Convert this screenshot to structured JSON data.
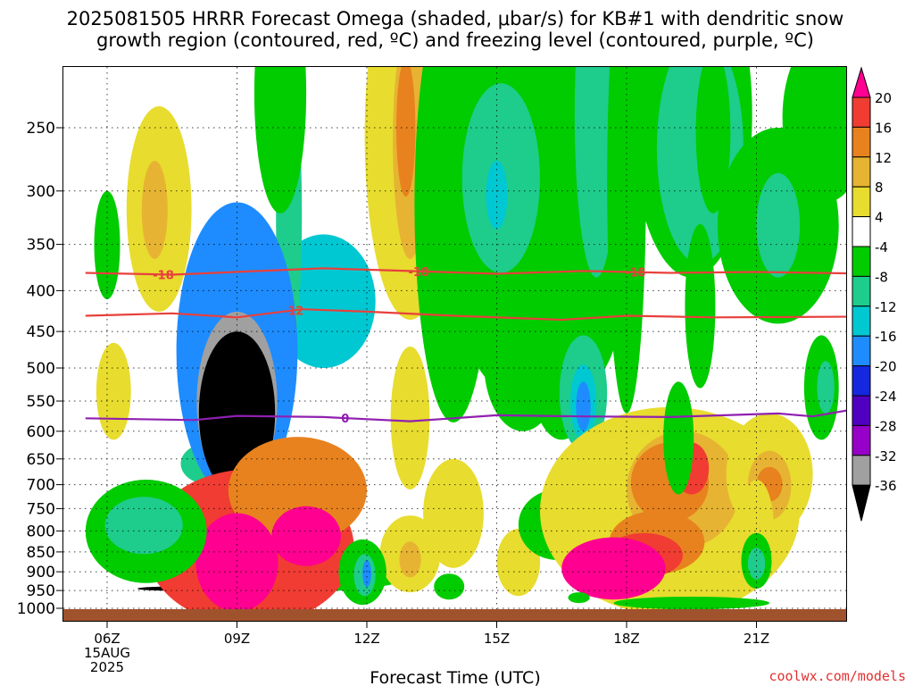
{
  "chart_data": {
    "type": "heatmap",
    "title_lines": [
      "2025081505 HRRR Forecast Omega (shaded, μbar/s) for KB#1 with dendritic snow",
      "growth region (contoured, red, ºC) and freezing level (contoured, purple, ºC)"
    ],
    "xlabel": "Forecast Time (UTC)",
    "ylabel": "",
    "credit": "coolwx.com/models",
    "x_ticks": [
      {
        "hour": 6,
        "lines": [
          "06Z",
          "15AUG",
          "2025"
        ]
      },
      {
        "hour": 9,
        "lines": [
          "09Z"
        ]
      },
      {
        "hour": 12,
        "lines": [
          "12Z"
        ]
      },
      {
        "hour": 15,
        "lines": [
          "15Z"
        ]
      },
      {
        "hour": 18,
        "lines": [
          "18Z"
        ]
      },
      {
        "hour": 21,
        "lines": [
          "21Z"
        ]
      }
    ],
    "xlim": [
      5.5,
      23.75
    ],
    "y_ticks": [
      250,
      300,
      350,
      400,
      450,
      500,
      550,
      600,
      650,
      700,
      750,
      800,
      850,
      900,
      950,
      1000
    ],
    "ylim": [
      200,
      1015
    ],
    "y_scale": "log-pressure",
    "grid": true,
    "colorbar": {
      "labels": [
        20,
        16,
        12,
        8,
        4,
        -4,
        -8,
        -12,
        -16,
        -20,
        -24,
        -28,
        -32,
        -36
      ],
      "colors": [
        "#ff0090",
        "#f03c32",
        "#e8821e",
        "#e6b432",
        "#e8dc2e",
        "#ffffff",
        "#00cc00",
        "#1ecc8c",
        "#00c8d2",
        "#1e8cff",
        "#1428e0",
        "#5000c0",
        "#9600c8",
        "#a0a0a0",
        "#000000"
      ]
    },
    "contours": [
      {
        "name": "-18",
        "color": "#e8403c",
        "label_hours": [
          7.3,
          13.2,
          18.2
        ],
        "points": [
          [
            5.5,
            380
          ],
          [
            7.5,
            382
          ],
          [
            9.5,
            378
          ],
          [
            11,
            375
          ],
          [
            13,
            378
          ],
          [
            15,
            381
          ],
          [
            17,
            378
          ],
          [
            19,
            380
          ],
          [
            21,
            379
          ],
          [
            23.75,
            381
          ]
        ]
      },
      {
        "name": "-12",
        "color": "#e8403c",
        "label_hours": [
          10.3
        ],
        "points": [
          [
            5.5,
            430
          ],
          [
            7.5,
            427
          ],
          [
            9,
            432
          ],
          [
            10.5,
            422
          ],
          [
            12,
            425
          ],
          [
            14,
            430
          ],
          [
            16.5,
            435
          ],
          [
            18,
            430
          ],
          [
            20,
            432
          ],
          [
            23.75,
            431
          ]
        ]
      },
      {
        "name": "0",
        "color": "#9020b0",
        "label_hours": [
          11.5
        ],
        "points": [
          [
            5.5,
            578
          ],
          [
            8,
            581
          ],
          [
            9,
            574
          ],
          [
            11,
            576
          ],
          [
            13,
            583
          ],
          [
            15,
            573
          ],
          [
            17,
            575
          ],
          [
            19,
            576
          ],
          [
            21.5,
            570
          ],
          [
            22.3,
            575
          ],
          [
            23.75,
            557
          ]
        ]
      }
    ],
    "cells": [
      {
        "hour": 8.3,
        "p": 660,
        "hw": 0.6,
        "hh": 38,
        "v": -8
      },
      {
        "hour": 10.6,
        "p": 905,
        "hw": 2.5,
        "hh": 48,
        "v": -4.4
      },
      {
        "hour": 11.0,
        "p": 420,
        "hw": 1.2,
        "hh": 80,
        "v": -12.5
      },
      {
        "hour": 7.6,
        "p": 945,
        "hw": 0.9,
        "hh": 6,
        "v": -36
      },
      {
        "hour": 10.2,
        "p": 350,
        "hw": 0.3,
        "hh": 140,
        "v": -8
      },
      {
        "hour": 9.0,
        "p": 520,
        "hw": 1.4,
        "hh": 210,
        "v": -17
      },
      {
        "hour": 9.0,
        "p": 570,
        "hw": 0.93,
        "hh": 145,
        "v": -33
      },
      {
        "hour": 9.0,
        "p": 585,
        "hw": 0.88,
        "hh": 135,
        "v": -36.5
      },
      {
        "hour": 9.3,
        "p": 860,
        "hw": 2.4,
        "hh": 190,
        "v": 17
      },
      {
        "hour": 10.4,
        "p": 720,
        "hw": 1.6,
        "hh": 110,
        "v": 14
      },
      {
        "hour": 9.0,
        "p": 885,
        "hw": 0.95,
        "hh": 125,
        "v": 20.5
      },
      {
        "hour": 10.6,
        "p": 815,
        "hw": 0.8,
        "hh": 70,
        "v": 20.5
      },
      {
        "hour": 7.2,
        "p": 330,
        "hw": 0.75,
        "hh": 95,
        "v": 5
      },
      {
        "hour": 7.1,
        "p": 320,
        "hw": 0.3,
        "hh": 45,
        "v": 9
      },
      {
        "hour": 6.15,
        "p": 255,
        "hw": 0.14,
        "hh": 25,
        "v": 3.8
      },
      {
        "hour": 6.15,
        "p": 540,
        "hw": 0.4,
        "hh": 75,
        "v": 4.5
      },
      {
        "hour": 6.0,
        "p": 355,
        "hw": 0.3,
        "hh": 55,
        "v": -4.5
      },
      {
        "hour": 6.9,
        "p": 810,
        "hw": 1.4,
        "hh": 120,
        "v": -4.5
      },
      {
        "hour": 6.85,
        "p": 790,
        "hw": 0.9,
        "hh": 65,
        "v": -9
      },
      {
        "hour": 10.0,
        "p": 240,
        "hw": 0.6,
        "hh": 80,
        "v": -5
      },
      {
        "hour": 13.0,
        "p": 235,
        "hw": 1.05,
        "hh": 200,
        "v": 5
      },
      {
        "hour": 13.0,
        "p": 275,
        "hw": 0.4,
        "hh": 90,
        "v": 9
      },
      {
        "hour": 12.9,
        "p": 255,
        "hw": 0.22,
        "hh": 50,
        "v": 13
      },
      {
        "hour": 14.0,
        "p": 375,
        "hw": 0.9,
        "hh": 210,
        "v": -4.4
      },
      {
        "hour": 15.3,
        "p": 235,
        "hw": 1.6,
        "hh": 300,
        "v": -4.5
      },
      {
        "hour": 15.1,
        "p": 300,
        "hw": 0.9,
        "hh": 80,
        "v": -9
      },
      {
        "hour": 15.0,
        "p": 305,
        "hw": 0.25,
        "hh": 30,
        "v": -13
      },
      {
        "hour": 17.2,
        "p": 235,
        "hw": 1.0,
        "hh": 280,
        "v": -4.5
      },
      {
        "hour": 17.3,
        "p": 265,
        "hw": 0.5,
        "hh": 120,
        "v": -8.5
      },
      {
        "hour": 15.6,
        "p": 500,
        "hw": 0.9,
        "hh": 100,
        "v": -4.5
      },
      {
        "hour": 13.0,
        "p": 860,
        "hw": 0.7,
        "hh": 95,
        "v": 4.5
      },
      {
        "hour": 13.0,
        "p": 870,
        "hw": 0.25,
        "hh": 45,
        "v": 9
      },
      {
        "hour": 14.0,
        "p": 770,
        "hw": 0.7,
        "hh": 120,
        "v": 4.5
      },
      {
        "hour": 15.5,
        "p": 880,
        "hw": 0.5,
        "hh": 85,
        "v": 4.5
      },
      {
        "hour": 11.9,
        "p": 905,
        "hw": 0.55,
        "hh": 85,
        "v": -4.5
      },
      {
        "hour": 11.95,
        "p": 910,
        "hw": 0.25,
        "hh": 55,
        "v": -10
      },
      {
        "hour": 12.0,
        "p": 905,
        "hw": 0.1,
        "hh": 35,
        "v": -17
      },
      {
        "hour": 13.0,
        "p": 590,
        "hw": 0.45,
        "hh": 120,
        "v": 5
      },
      {
        "hour": 13.9,
        "p": 940,
        "hw": 0.35,
        "hh": 35,
        "v": -5
      },
      {
        "hour": 16.5,
        "p": 495,
        "hw": 0.8,
        "hh": 120,
        "v": -5
      },
      {
        "hour": 17.0,
        "p": 545,
        "hw": 0.55,
        "hh": 90,
        "v": -8.5
      },
      {
        "hour": 17.0,
        "p": 555,
        "hw": 0.3,
        "hh": 60,
        "v": -13
      },
      {
        "hour": 17.0,
        "p": 560,
        "hw": 0.17,
        "hh": 40,
        "v": -18
      },
      {
        "hour": 16.4,
        "p": 790,
        "hw": 0.9,
        "hh": 80,
        "v": -4.5
      },
      {
        "hour": 16.6,
        "p": 840,
        "hw": 0.2,
        "hh": 25,
        "v": -9
      },
      {
        "hour": 19.0,
        "p": 790,
        "hw": 3.0,
        "hh": 230,
        "v": 5
      },
      {
        "hour": 19.3,
        "p": 720,
        "hw": 1.3,
        "hh": 120,
        "v": 9
      },
      {
        "hour": 19.0,
        "p": 700,
        "hw": 0.9,
        "hh": 80,
        "v": 13
      },
      {
        "hour": 18.7,
        "p": 830,
        "hw": 1.1,
        "hh": 75,
        "v": 15
      },
      {
        "hour": 18.4,
        "p": 860,
        "hw": 0.9,
        "hh": 55,
        "v": 16.5
      },
      {
        "hour": 17.7,
        "p": 895,
        "hw": 1.2,
        "hh": 80,
        "v": 20.5
      },
      {
        "hour": 19.5,
        "p": 670,
        "hw": 0.4,
        "hh": 50,
        "v": 16.5
      },
      {
        "hour": 21.3,
        "p": 690,
        "hw": 1.0,
        "hh": 120,
        "v": 5
      },
      {
        "hour": 21.3,
        "p": 705,
        "hw": 0.5,
        "hh": 70,
        "v": 9
      },
      {
        "hour": 21.3,
        "p": 700,
        "hw": 0.3,
        "hh": 35,
        "v": 13
      },
      {
        "hour": 21.0,
        "p": 800,
        "hw": 0.4,
        "hh": 110,
        "v": 6
      },
      {
        "hour": 21.0,
        "p": 875,
        "hw": 0.35,
        "hh": 70,
        "v": -5
      },
      {
        "hour": 21.0,
        "p": 880,
        "hw": 0.2,
        "hh": 40,
        "v": -9
      },
      {
        "hour": 19.5,
        "p": 255,
        "hw": 1.4,
        "hh": 130,
        "v": -4.5
      },
      {
        "hour": 19.7,
        "p": 280,
        "hw": 1.0,
        "hh": 90,
        "v": -8.5
      },
      {
        "hour": 19.9,
        "p": 250,
        "hw": 0.25,
        "hh": 45,
        "v": -13
      },
      {
        "hour": 19.9,
        "p": 240,
        "hw": 0.12,
        "hh": 25,
        "v": -17
      },
      {
        "hour": 18.0,
        "p": 350,
        "hw": 0.45,
        "hh": 220,
        "v": -4.5
      },
      {
        "hour": 20.0,
        "p": 260,
        "hw": 0.4,
        "hh": 60,
        "v": -4.5
      },
      {
        "hour": 21.5,
        "p": 345,
        "hw": 1.4,
        "hh": 95,
        "v": -4.5
      },
      {
        "hour": 21.5,
        "p": 335,
        "hw": 0.5,
        "hh": 50,
        "v": -9
      },
      {
        "hour": 22.6,
        "p": 250,
        "hw": 1.0,
        "hh": 60,
        "v": -4.5
      },
      {
        "hour": 19.7,
        "p": 430,
        "hw": 0.35,
        "hh": 100,
        "v": -4.5
      },
      {
        "hour": 19.2,
        "p": 620,
        "hw": 0.35,
        "hh": 100,
        "v": -4.5
      },
      {
        "hour": 22.5,
        "p": 535,
        "hw": 0.4,
        "hh": 80,
        "v": -4.5
      },
      {
        "hour": 22.6,
        "p": 530,
        "hw": 0.2,
        "hh": 40,
        "v": -9
      },
      {
        "hour": 23.7,
        "p": 550,
        "hw": 0.4,
        "hh": 250,
        "v": -4.5
      },
      {
        "hour": 23.4,
        "p": 740,
        "hw": 0.25,
        "hh": 100,
        "v": 5
      },
      {
        "hour": 23.8,
        "p": 930,
        "hw": 0.2,
        "hh": 60,
        "v": 4.5
      },
      {
        "hour": 19.5,
        "p": 985,
        "hw": 1.8,
        "hh": 18,
        "v": -4.5
      },
      {
        "hour": 16.9,
        "p": 970,
        "hw": 0.25,
        "hh": 15,
        "v": -4.5
      }
    ]
  }
}
